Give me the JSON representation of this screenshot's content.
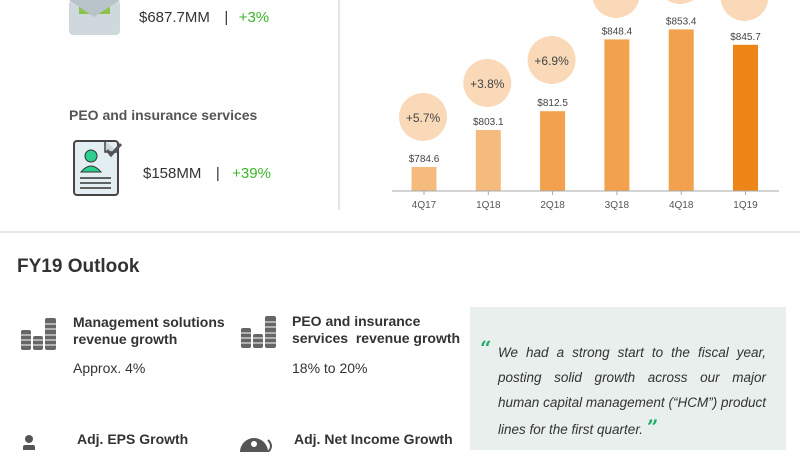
{
  "segments": {
    "management": {
      "value": "$687.7MM",
      "separator": "|",
      "growth": "+3%"
    },
    "peo": {
      "label": "PEO and insurance services",
      "value": "$158MM",
      "separator": "|",
      "growth": "+39%"
    }
  },
  "outlook": {
    "title": "FY19 Outlook",
    "items": [
      {
        "heading": "Management solutions revenue growth",
        "value": "Approx. 4%"
      },
      {
        "heading": "PEO and insurance services  revenue growth",
        "value": "18% to 20%"
      },
      {
        "heading": "Adj. EPS Growth",
        "value": ""
      },
      {
        "heading": "Adj. Net Income Growth",
        "value": ""
      }
    ],
    "quote": "We had a strong start to the fiscal year, posting solid growth across our major human capital management (“HCM”) product lines for the first quarter."
  },
  "colors": {
    "accent_green": "#3bb528",
    "bar_light": "#f5bb7c",
    "bar_mid": "#f2a24c",
    "bar_latest": "#ee8617",
    "bubble": "#fad9b9"
  },
  "chart_data": {
    "type": "bar",
    "categories": [
      "4Q17",
      "1Q18",
      "2Q18",
      "3Q18",
      "4Q18",
      "1Q19"
    ],
    "values": [
      784.6,
      803.1,
      812.5,
      848.4,
      853.4,
      845.7
    ],
    "value_labels": [
      "$784.6",
      "$803.1",
      "$812.5",
      "$848.4",
      "$853.4",
      "$845.7"
    ],
    "growth_labels": [
      "+5.7%",
      "+3.8%",
      "+6.9%",
      "",
      "",
      ""
    ],
    "ylim": [
      772.6,
      870
    ],
    "grid": false
  }
}
